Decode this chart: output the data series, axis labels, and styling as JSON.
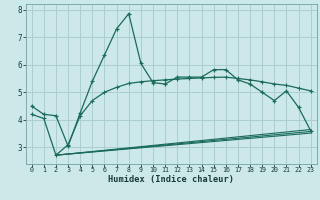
{
  "xlabel": "Humidex (Indice chaleur)",
  "background_color": "#cce8e8",
  "grid_color": "#aacfcf",
  "line_color": "#1a6b5a",
  "xlim": [
    -0.5,
    23.5
  ],
  "ylim": [
    2.4,
    8.2
  ],
  "xticks": [
    0,
    1,
    2,
    3,
    4,
    5,
    6,
    7,
    8,
    9,
    10,
    11,
    12,
    13,
    14,
    15,
    16,
    17,
    18,
    19,
    20,
    21,
    22,
    23
  ],
  "yticks": [
    3,
    4,
    5,
    6,
    7,
    8
  ],
  "line1_x": [
    0,
    1,
    2,
    3,
    4,
    5,
    6,
    7,
    8,
    9,
    10,
    11,
    12,
    13,
    14,
    15,
    16,
    17,
    18,
    19,
    20,
    21,
    22,
    23
  ],
  "line1_y": [
    4.5,
    4.2,
    4.15,
    3.05,
    4.25,
    5.4,
    6.35,
    7.3,
    7.85,
    6.05,
    5.35,
    5.3,
    5.55,
    5.55,
    5.55,
    5.82,
    5.82,
    5.45,
    5.3,
    5.0,
    4.7,
    5.05,
    4.45,
    3.6
  ],
  "line2_x": [
    0,
    1,
    2,
    3,
    4,
    5,
    6,
    7,
    8,
    9,
    10,
    11,
    12,
    13,
    14,
    15,
    16,
    17,
    18,
    19,
    20,
    21,
    22,
    23
  ],
  "line2_y": [
    4.2,
    4.05,
    2.72,
    3.1,
    4.15,
    4.7,
    5.0,
    5.18,
    5.32,
    5.38,
    5.42,
    5.45,
    5.48,
    5.5,
    5.52,
    5.54,
    5.55,
    5.5,
    5.45,
    5.38,
    5.3,
    5.25,
    5.15,
    5.05
  ],
  "line3_x": [
    2,
    23
  ],
  "line3_y": [
    2.72,
    3.65
  ],
  "line4_x": [
    2,
    23
  ],
  "line4_y": [
    2.72,
    3.58
  ],
  "line5_x": [
    2,
    23
  ],
  "line5_y": [
    2.72,
    3.52
  ]
}
